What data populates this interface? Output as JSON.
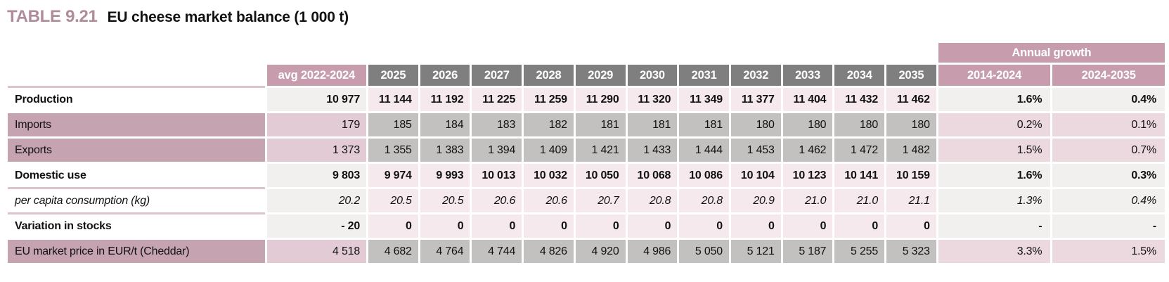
{
  "title": {
    "table_number": "TABLE 9.21",
    "caption": "EU cheese market balance (1 000 t)"
  },
  "colors": {
    "title_accent": "#b08c9b",
    "header_mauve": "#c79dad",
    "header_gray": "#7f7f7f",
    "shaded_label_bg": "#c6a3b0",
    "shaded_avg_bg": "#e2cbd4",
    "shaded_year_bg": "#c2c1c0",
    "shaded_growth_bg": "#ecd9e0",
    "light_avg_bg": "#f2f0ef",
    "light_year_bg": "#f5e9ee",
    "light_growth_bg": "#f2f0ef",
    "separator_pink": "#dcc3cd",
    "header_text": "#ffffff"
  },
  "table": {
    "annual_growth_label": "Annual growth",
    "columns": {
      "avg": "avg 2022-2024",
      "years": [
        "2025",
        "2026",
        "2027",
        "2028",
        "2029",
        "2030",
        "2031",
        "2032",
        "2033",
        "2034",
        "2035"
      ],
      "growth": [
        "2014-2024",
        "2024-2035"
      ]
    },
    "rows": [
      {
        "label": "Production",
        "emphasis": "bold",
        "shaded": false,
        "avg": "10 977",
        "years": [
          "11 144",
          "11 192",
          "11 225",
          "11 259",
          "11 290",
          "11 320",
          "11 349",
          "11 377",
          "11 404",
          "11 432",
          "11 462"
        ],
        "growth": [
          "1.6%",
          "0.4%"
        ]
      },
      {
        "label": "Imports",
        "emphasis": "regular",
        "shaded": true,
        "avg": "179",
        "years": [
          "185",
          "184",
          "183",
          "182",
          "181",
          "181",
          "181",
          "180",
          "180",
          "180",
          "180"
        ],
        "growth": [
          "0.2%",
          "0.1%"
        ]
      },
      {
        "label": "Exports",
        "emphasis": "regular",
        "shaded": true,
        "avg": "1 373",
        "years": [
          "1 355",
          "1 383",
          "1 394",
          "1 409",
          "1 421",
          "1 433",
          "1 444",
          "1 453",
          "1 462",
          "1 472",
          "1 482"
        ],
        "growth": [
          "1.5%",
          "0.7%"
        ]
      },
      {
        "label": "Domestic use",
        "emphasis": "bold",
        "shaded": false,
        "avg": "9 803",
        "years": [
          "9 974",
          "9 993",
          "10 013",
          "10 032",
          "10 050",
          "10 068",
          "10 086",
          "10 104",
          "10 123",
          "10 141",
          "10 159"
        ],
        "growth": [
          "1.6%",
          "0.3%"
        ]
      },
      {
        "label": "per capita consumption (kg)",
        "emphasis": "italic",
        "shaded": false,
        "avg": "20.2",
        "years": [
          "20.5",
          "20.5",
          "20.6",
          "20.6",
          "20.7",
          "20.8",
          "20.8",
          "20.9",
          "21.0",
          "21.0",
          "21.1"
        ],
        "growth": [
          "1.3%",
          "0.4%"
        ]
      },
      {
        "label": "Variation in stocks",
        "emphasis": "bold",
        "shaded": false,
        "avg": "- 20",
        "years": [
          "0",
          "0",
          "0",
          "0",
          "0",
          "0",
          "0",
          "0",
          "0",
          "0",
          "0"
        ],
        "growth": [
          "-",
          "-"
        ]
      },
      {
        "label": "EU market price in EUR/t (Cheddar)",
        "emphasis": "regular",
        "shaded": true,
        "avg": "4 518",
        "years": [
          "4 682",
          "4 764",
          "4 744",
          "4 826",
          "4 920",
          "4 986",
          "5 050",
          "5 121",
          "5 187",
          "5 255",
          "5 323"
        ],
        "growth": [
          "3.3%",
          "1.5%"
        ]
      }
    ]
  }
}
